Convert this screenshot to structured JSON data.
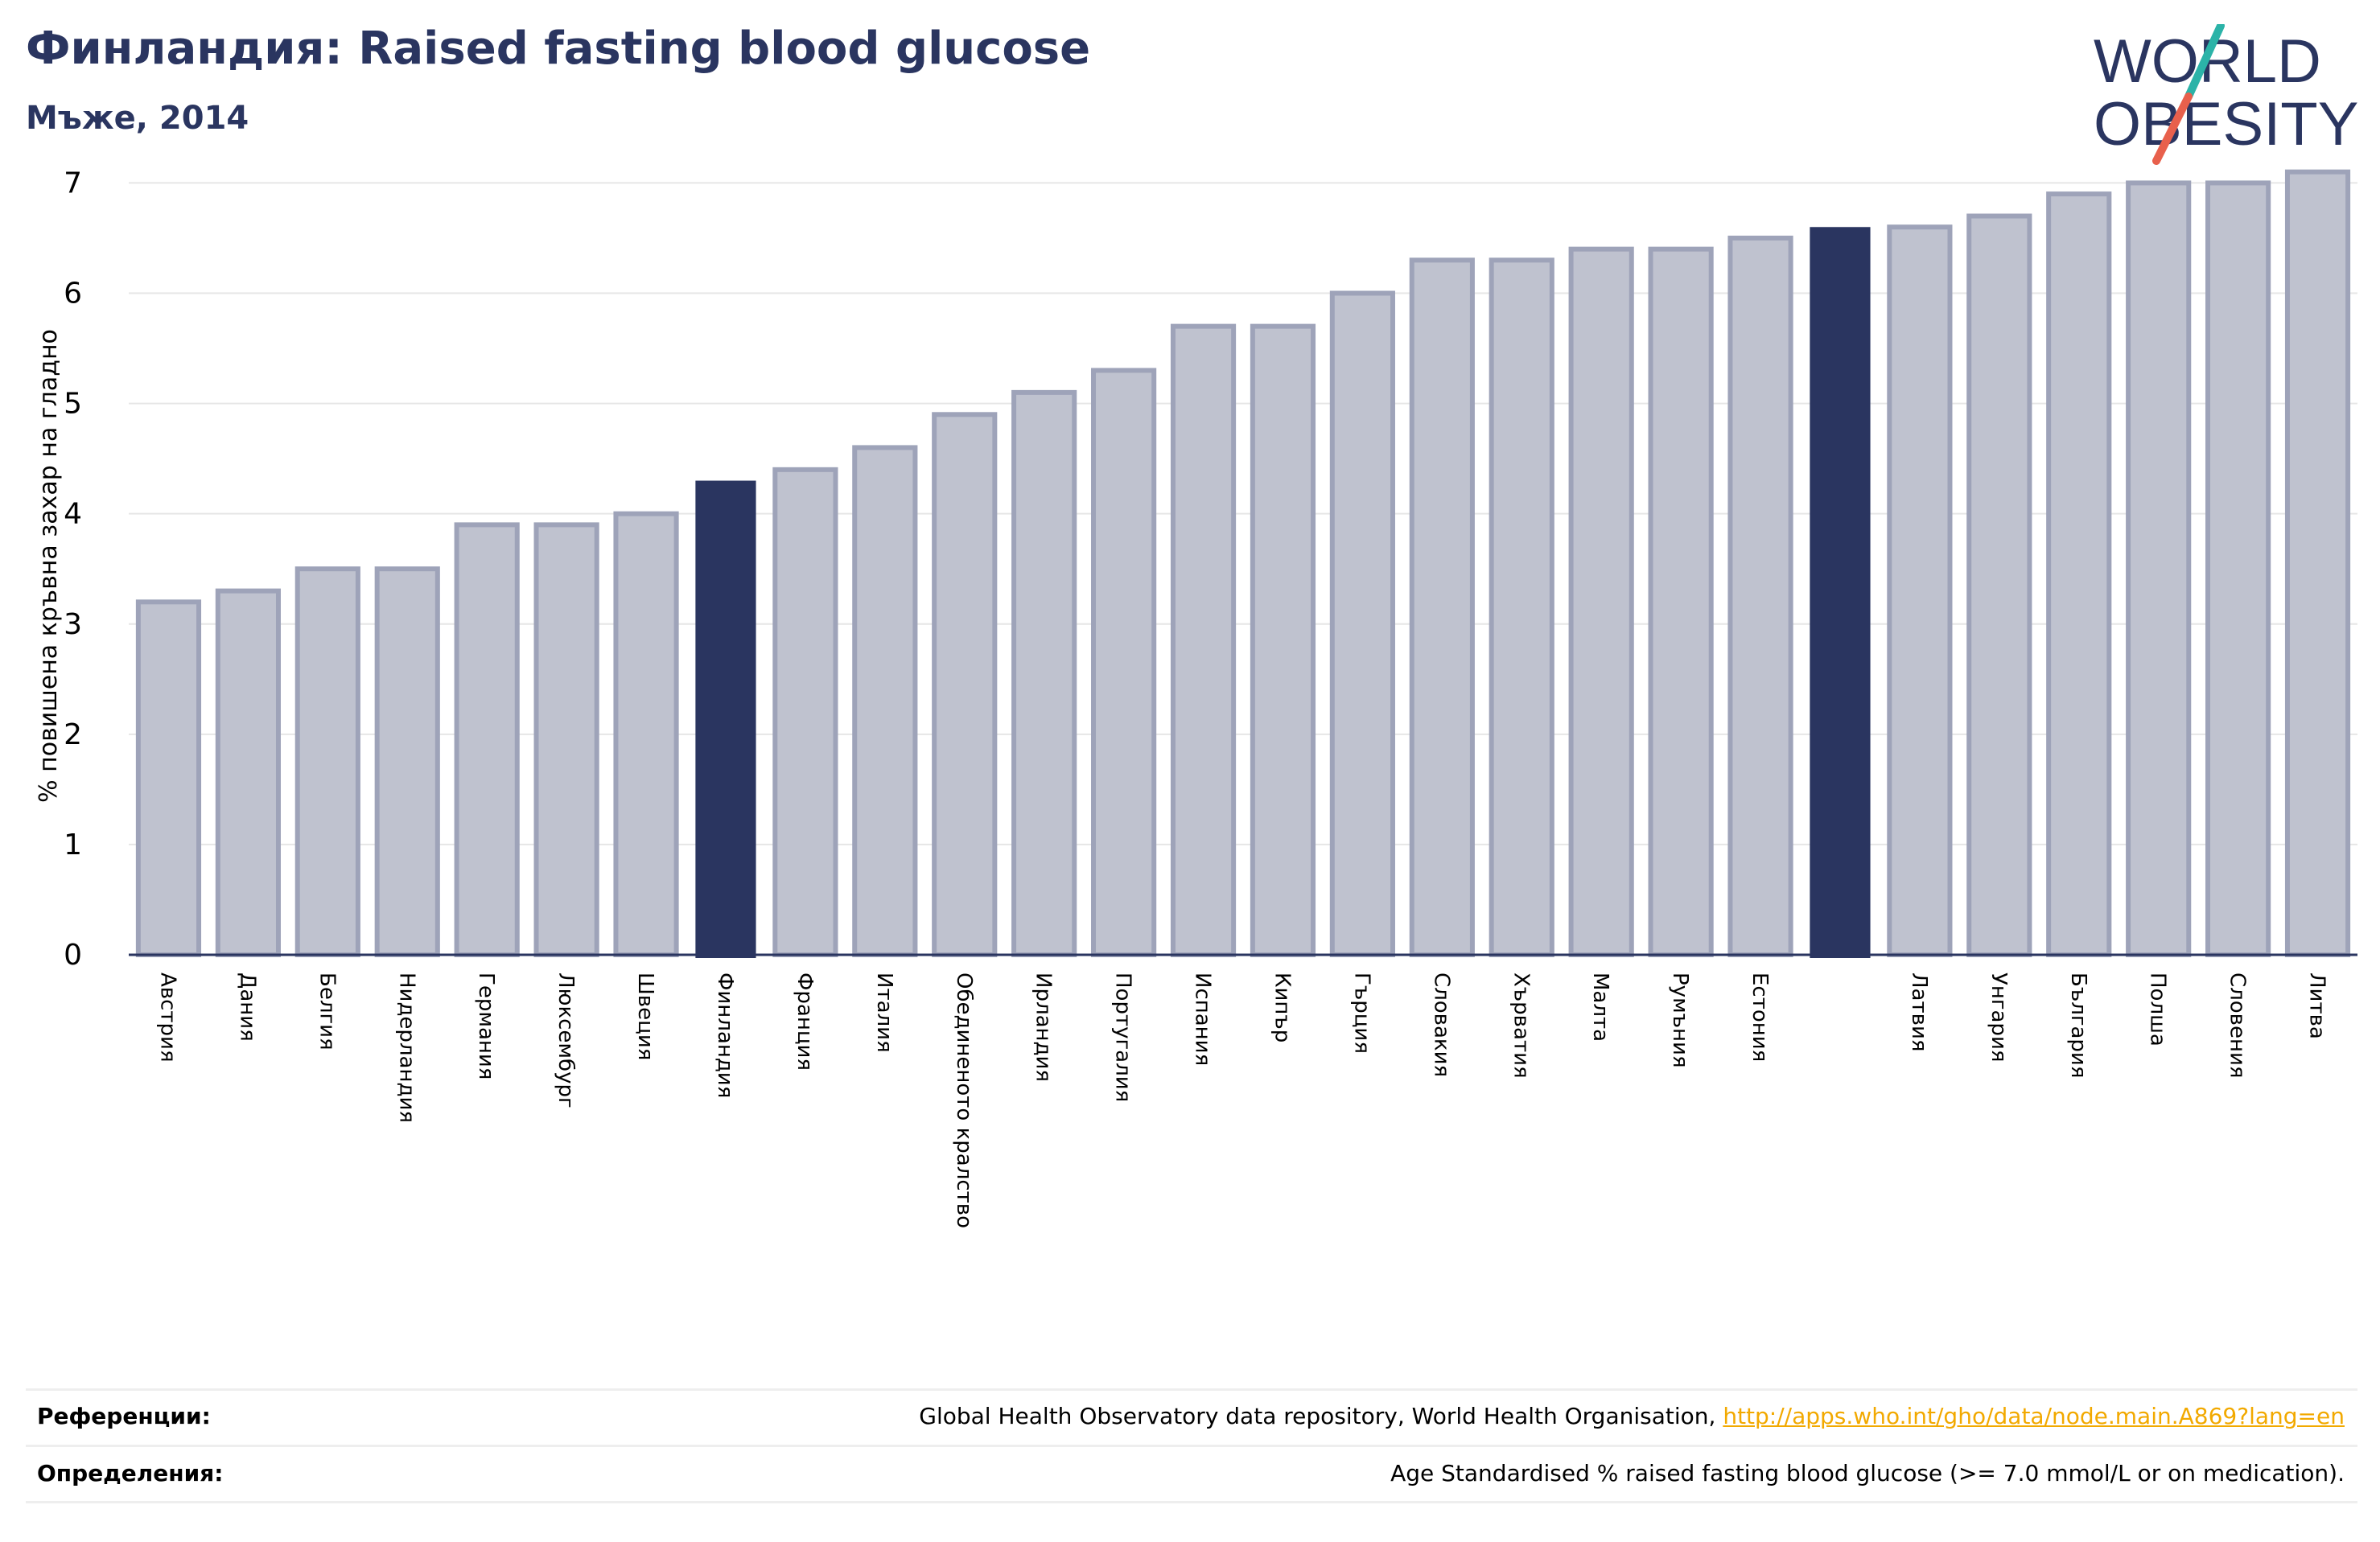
{
  "header": {
    "title": "Финландия: Raised fasting blood glucose",
    "subtitle": "Мъже, 2014"
  },
  "logo": {
    "line1": "WORLD",
    "line2": "OBESITY"
  },
  "colors": {
    "title": "#2a3560",
    "bar_default_fill": "#bfc2cf",
    "bar_default_stroke": "#9ea3b9",
    "bar_highlight": "#2a3560",
    "logo_teal": "#2bb3a8",
    "logo_coral": "#e8604c",
    "link": "#f2a900"
  },
  "chart_data": {
    "type": "bar",
    "title": "Финландия: Raised fasting blood glucose",
    "subtitle": "Мъже, 2014",
    "xlabel": "",
    "ylabel": "% повишена кръвна захар на гладно",
    "ylim": [
      0,
      7.2
    ],
    "yticks": [
      0,
      1,
      2,
      3,
      4,
      5,
      6,
      7
    ],
    "grid": true,
    "categories": [
      "Австрия",
      "Дания",
      "Белгия",
      "Нидерландия",
      "Германия",
      "Люксембург",
      "Швеция",
      "Финландия",
      "Франция",
      "Италия",
      "Обединеното кралство",
      "Ирландия",
      "Португалия",
      "Испания",
      "Кипър",
      "Гърция",
      "Словакия",
      "Хърватия",
      "Малта",
      "Румъния",
      "Естония",
      "",
      "Латвия",
      "Унгария",
      "България",
      "Полша",
      "Словения",
      "Литва"
    ],
    "values": [
      3.2,
      3.3,
      3.5,
      3.5,
      3.9,
      3.9,
      4.0,
      4.3,
      4.4,
      4.6,
      4.9,
      5.1,
      5.3,
      5.7,
      5.7,
      6.0,
      6.3,
      6.3,
      6.4,
      6.4,
      6.5,
      6.6,
      6.6,
      6.7,
      6.9,
      7.0,
      7.0,
      7.1
    ],
    "highlighted": [
      "Финландия",
      ""
    ]
  },
  "footer": {
    "references_label": "Референции:",
    "references_text": "Global Health Observatory data repository, World Health Organisation, ",
    "references_link": "http://apps.who.int/gho/data/node.main.A869?lang=en",
    "definitions_label": "Определения:",
    "definitions_text": "Age Standardised % raised fasting blood glucose (>= 7.0 mmol/L or on medication)."
  }
}
